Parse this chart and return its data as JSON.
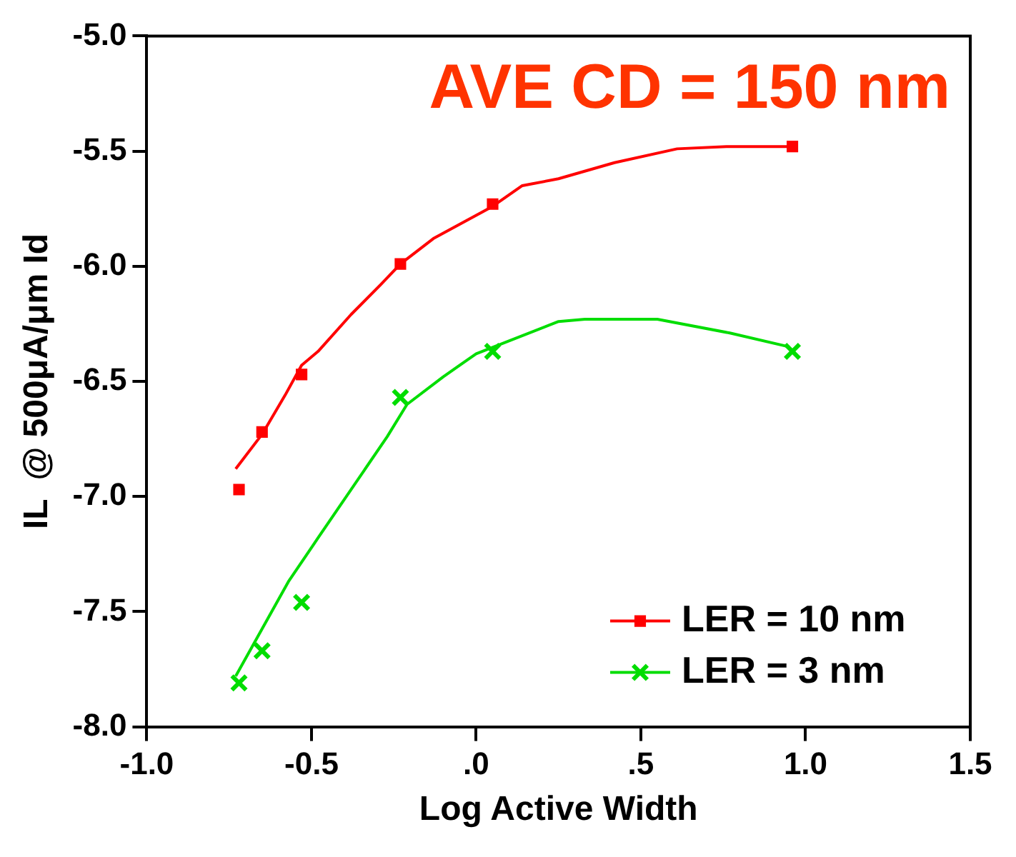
{
  "chart_data": {
    "type": "scatter",
    "title": "AVE CD = 150 nm",
    "xlabel": "Log Active Width",
    "ylabel": "IL  @ 500μA/μm Id",
    "xlim": [
      -1.0,
      1.5
    ],
    "ylim": [
      -8.0,
      -5.0
    ],
    "xticks": [
      {
        "value": -1.0,
        "label": "-1.0"
      },
      {
        "value": -0.5,
        "label": "-0.5"
      },
      {
        "value": 0,
        "label": ".0"
      },
      {
        "value": 0.5,
        "label": ".5"
      },
      {
        "value": 1.0,
        "label": "1.0"
      },
      {
        "value": 1.5,
        "label": "1.5"
      }
    ],
    "yticks": [
      {
        "value": -8.0,
        "label": "-8.0"
      },
      {
        "value": -7.5,
        "label": "-7.5"
      },
      {
        "value": -7.0,
        "label": "-7.0"
      },
      {
        "value": -6.5,
        "label": "-6.5"
      },
      {
        "value": -6.0,
        "label": "-6.0"
      },
      {
        "value": -5.5,
        "label": "-5.5"
      },
      {
        "value": -5.0,
        "label": "-5.0"
      }
    ],
    "legend": "bottom right",
    "grid": false,
    "series": [
      {
        "name": "LER = 10 nm",
        "color": "#ff0000",
        "marker": "square",
        "x": [
          -0.72,
          -0.65,
          -0.53,
          -0.23,
          0.05,
          0.96
        ],
        "values": [
          -6.97,
          -6.72,
          -6.47,
          -5.99,
          -5.73,
          -5.48
        ]
      },
      {
        "name": "LER = 3 nm",
        "color": "#00dd00",
        "marker": "cross",
        "x": [
          -0.72,
          -0.65,
          -0.53,
          -0.23,
          0.05,
          0.96
        ],
        "values": [
          -7.81,
          -7.67,
          -7.46,
          -6.57,
          -6.37,
          -6.37
        ]
      },
      {
        "type": "line",
        "color": "#ff0000",
        "marker": "none",
        "x": [
          -0.73,
          -0.65,
          -0.58,
          -0.53,
          -0.48,
          -0.38,
          -0.29,
          -0.23,
          -0.13,
          0.05,
          0.14,
          0.25,
          0.42,
          0.61,
          0.76,
          0.95
        ],
        "values": [
          -6.88,
          -6.73,
          -6.56,
          -6.43,
          -6.37,
          -6.21,
          -6.08,
          -5.99,
          -5.88,
          -5.74,
          -5.65,
          -5.62,
          -5.55,
          -5.49,
          -5.48,
          -5.48
        ]
      },
      {
        "type": "line",
        "color": "#00dd00",
        "marker": "none",
        "x": [
          -0.73,
          -0.57,
          -0.48,
          -0.27,
          -0.21,
          -0.1,
          0.0,
          0.25,
          0.33,
          0.55,
          0.77,
          0.95
        ],
        "values": [
          -7.78,
          -7.37,
          -7.18,
          -6.74,
          -6.6,
          -6.48,
          -6.38,
          -6.24,
          -6.23,
          -6.23,
          -6.29,
          -6.35
        ]
      }
    ]
  }
}
